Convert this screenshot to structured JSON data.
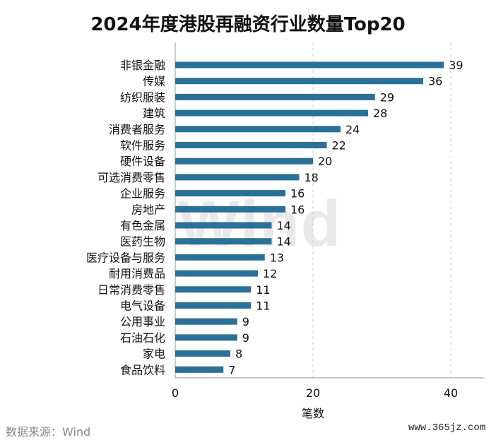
{
  "chart_data": {
    "type": "bar",
    "orientation": "horizontal",
    "title": "2024年度港股再融资行业数量Top20",
    "xlabel": "笔数",
    "ylabel": "",
    "xlim": [
      0,
      45
    ],
    "xticks": [
      "0",
      "20",
      "40"
    ],
    "grid": "vertical dashed",
    "bar_color": "#2a7199",
    "categories": [
      "非银金融",
      "传媒",
      "纺织服装",
      "建筑",
      "消费者服务",
      "软件服务",
      "硬件设备",
      "可选消费零售",
      "企业服务",
      "房地产",
      "有色金属",
      "医药生物",
      "医疗设备与服务",
      "耐用消费品",
      "日常消费零售",
      "电气设备",
      "公用事业",
      "石油石化",
      "家电",
      "食品饮料"
    ],
    "values": [
      39,
      36,
      29,
      28,
      24,
      22,
      20,
      18,
      16,
      16,
      14,
      14,
      13,
      12,
      11,
      11,
      9,
      9,
      8,
      7
    ]
  },
  "watermark": "Wind",
  "source": "数据来源：Wind",
  "site": "www.365jz.com"
}
